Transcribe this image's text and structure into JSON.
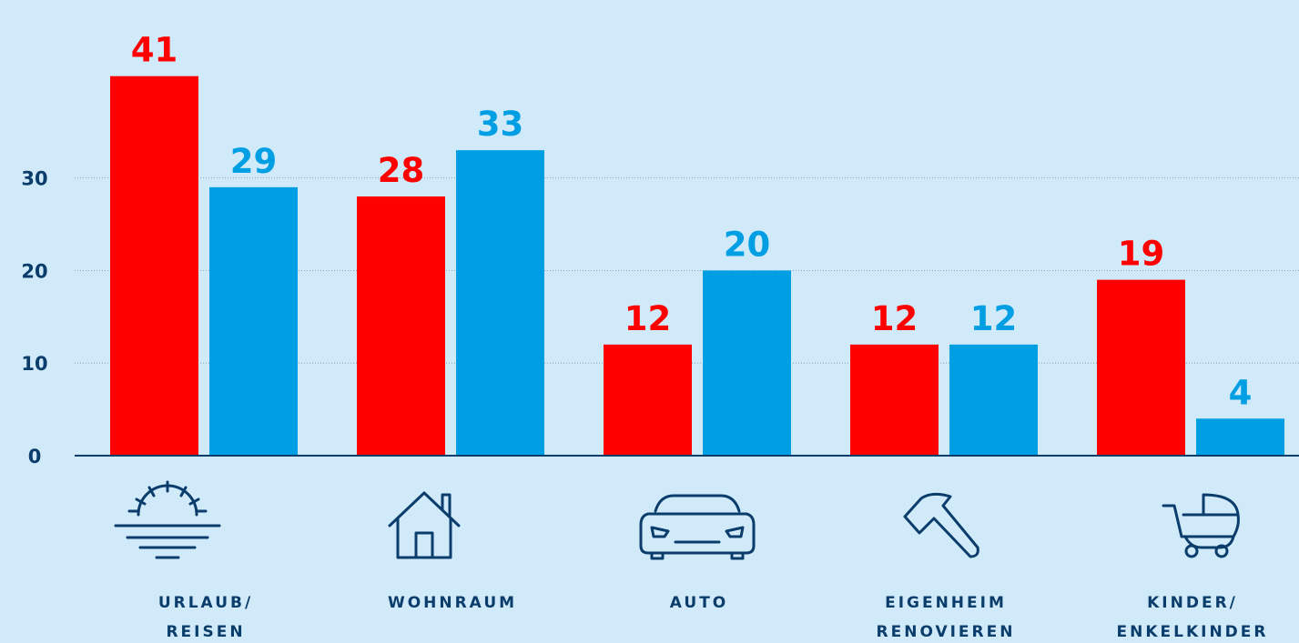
{
  "chart_data": {
    "type": "bar",
    "categories": [
      [
        "URLAUB/",
        "REISEN"
      ],
      [
        "WOHNRAUM"
      ],
      [
        "AUTO"
      ],
      [
        "EIGENHEIM",
        "RENOVIEREN"
      ],
      [
        "KINDER/",
        "ENKELKINDER"
      ]
    ],
    "series": [
      {
        "color": "#ff0000",
        "values": [
          41,
          28,
          12,
          12,
          19
        ]
      },
      {
        "color": "#009fe3",
        "values": [
          29,
          33,
          20,
          12,
          4
        ]
      }
    ],
    "ylim": [
      0,
      45
    ],
    "yticks": [
      0,
      10,
      20,
      30
    ],
    "grid": true
  }
}
